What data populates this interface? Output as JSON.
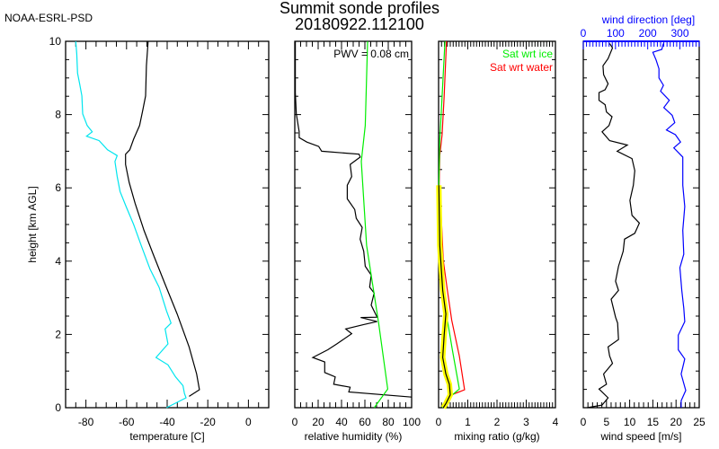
{
  "header": {
    "org": "NOAA-ESRL-PSD",
    "title": "Summit sonde profiles",
    "subtitle": "20180922.112100",
    "ylabel": "height [km AGL]"
  },
  "colors": {
    "temperature": "#000000",
    "dewpoint": "#00e5ee",
    "rh": "#000000",
    "rh_ice": "#00ee00",
    "mr": "#000000",
    "mr_band": "#ffff00",
    "sat_ice": "#00ee00",
    "sat_water": "#ff0000",
    "speed": "#000000",
    "direction": "#0000ff"
  },
  "chart_data": [
    {
      "type": "line",
      "name": "temperature",
      "xlabel": "temperature [C]",
      "ylabel": "height [km AGL]",
      "xlim": [
        -90,
        10
      ],
      "ylim": [
        0,
        10
      ],
      "xticks": [
        -80,
        -60,
        -40,
        -20,
        0
      ],
      "xtick_labels": [
        "-80",
        "-60",
        "-40",
        "-20",
        "0"
      ],
      "yticks": [
        0,
        2,
        4,
        6,
        8,
        10
      ],
      "ytick_labels": [
        "0",
        "2",
        "4",
        "6",
        "8",
        "10"
      ],
      "series": [
        {
          "name": "temperature",
          "color": "#000000",
          "points": [
            [
              -49.4,
              10
            ],
            [
              -50.2,
              9.33
            ],
            [
              -50.6,
              8.51
            ],
            [
              -52.1,
              8.1
            ],
            [
              -53.6,
              7.7
            ],
            [
              -56.5,
              7.33
            ],
            [
              -58.4,
              7.04
            ],
            [
              -60.5,
              6.92
            ],
            [
              -60.5,
              6.64
            ],
            [
              -58.7,
              6.15
            ],
            [
              -55.8,
              5.58
            ],
            [
              -51.4,
              4.84
            ],
            [
              -46.9,
              4.19
            ],
            [
              -41.0,
              3.37
            ],
            [
              -35.1,
              2.56
            ],
            [
              -29.2,
              1.66
            ],
            [
              -25.5,
              0.92
            ],
            [
              -24.1,
              0.49
            ],
            [
              -29.2,
              0.31
            ]
          ]
        },
        {
          "name": "dewpoint",
          "color": "#00e5ee",
          "points": [
            [
              -85,
              10
            ],
            [
              -84.5,
              9.66
            ],
            [
              -84.1,
              9.13
            ],
            [
              -83.1,
              8.84
            ],
            [
              -82,
              8.51
            ],
            [
              -81.6,
              8.02
            ],
            [
              -79.4,
              7.7
            ],
            [
              -76.9,
              7.53
            ],
            [
              -79.7,
              7.41
            ],
            [
              -73.5,
              7.29
            ],
            [
              -69.4,
              7.04
            ],
            [
              -64.6,
              6.88
            ],
            [
              -65.7,
              6.72
            ],
            [
              -64.6,
              6.31
            ],
            [
              -63.2,
              5.9
            ],
            [
              -60.2,
              5.49
            ],
            [
              -56.5,
              5.0
            ],
            [
              -52.8,
              4.43
            ],
            [
              -48.4,
              3.78
            ],
            [
              -44.0,
              3.29
            ],
            [
              -40.3,
              2.64
            ],
            [
              -38.1,
              2.31
            ],
            [
              -41.0,
              2.15
            ],
            [
              -39.6,
              1.74
            ],
            [
              -45.5,
              1.37
            ],
            [
              -39.6,
              1.17
            ],
            [
              -35.9,
              0.84
            ],
            [
              -32.2,
              0.6
            ],
            [
              -31.5,
              0.39
            ],
            [
              -30.7,
              0.27
            ],
            [
              -40.3,
              0
            ]
          ]
        }
      ]
    },
    {
      "type": "line",
      "name": "relative-humidity",
      "xlabel": "relative humidity (%)",
      "xlim": [
        0,
        100
      ],
      "ylim": [
        0,
        10
      ],
      "xticks": [
        0,
        20,
        40,
        60,
        80,
        100
      ],
      "xtick_labels": [
        "0",
        "20",
        "40",
        "60",
        "80",
        "100"
      ],
      "annotation": "PWV = 0.08 cm",
      "series": [
        {
          "name": "rh",
          "color": "#000000",
          "points": [
            [
              0.5,
              10
            ],
            [
              0.5,
              8.6
            ],
            [
              1.3,
              8.02
            ],
            [
              3.8,
              7.53
            ],
            [
              3.8,
              7.37
            ],
            [
              10.3,
              7.25
            ],
            [
              20.5,
              7.13
            ],
            [
              23,
              7.0
            ],
            [
              55,
              6.92
            ],
            [
              56,
              6.84
            ],
            [
              47.4,
              6.64
            ],
            [
              48.7,
              6.31
            ],
            [
              44.9,
              6.07
            ],
            [
              44.9,
              5.7
            ],
            [
              51.3,
              5.41
            ],
            [
              52.6,
              5.17
            ],
            [
              57.7,
              4.92
            ],
            [
              55.9,
              4.6
            ],
            [
              59,
              4.27
            ],
            [
              60.3,
              3.86
            ],
            [
              65.4,
              3.62
            ],
            [
              64.1,
              3.29
            ],
            [
              67.9,
              3.13
            ],
            [
              65.4,
              2.8
            ],
            [
              70.5,
              2.47
            ],
            [
              56.4,
              2.46
            ],
            [
              70.5,
              2.35
            ],
            [
              59,
              2.27
            ],
            [
              43.6,
              2.15
            ],
            [
              48.7,
              2.02
            ],
            [
              35.9,
              1.74
            ],
            [
              28.2,
              1.58
            ],
            [
              15.4,
              1.37
            ],
            [
              25.6,
              1.25
            ],
            [
              25.6,
              0.96
            ],
            [
              34.6,
              0.84
            ],
            [
              33.3,
              0.64
            ],
            [
              47.4,
              0.56
            ],
            [
              46.2,
              0.43
            ],
            [
              100,
              0.29
            ]
          ]
        },
        {
          "name": "rh_ice_saturation",
          "color": "#00ee00",
          "points": [
            [
              62.3,
              10
            ],
            [
              60.3,
              7.7
            ],
            [
              56.9,
              6.72
            ],
            [
              61.5,
              4.43
            ],
            [
              71.8,
              2.31
            ],
            [
              79.5,
              0.51
            ],
            [
              68,
              0
            ]
          ]
        }
      ]
    },
    {
      "type": "line",
      "name": "mixing-ratio",
      "xlabel": "mixing ratio (g/kg)",
      "xlim": [
        0,
        4
      ],
      "ylim": [
        0,
        10
      ],
      "xticks": [
        0,
        1,
        2,
        3,
        4
      ],
      "xtick_labels": [
        "0",
        "1",
        "2",
        "3",
        "4"
      ],
      "legend": [
        "Sat wrt ice",
        "Sat wrt water"
      ],
      "legend_position": "top-right",
      "series": [
        {
          "name": "sat_water",
          "color": "#ff0000",
          "points": [
            [
              0.27,
              10
            ],
            [
              0.19,
              8.5
            ],
            [
              0.12,
              7.45
            ],
            [
              0.04,
              6.88
            ],
            [
              0.02,
              6.07
            ],
            [
              0.09,
              5.25
            ],
            [
              0.16,
              4.02
            ],
            [
              0.3,
              3.2
            ],
            [
              0.45,
              2.39
            ],
            [
              0.71,
              1.41
            ],
            [
              0.89,
              0.49
            ],
            [
              0.45,
              0.35
            ],
            [
              0.14,
              0
            ]
          ]
        },
        {
          "name": "sat_ice",
          "color": "#00ee00",
          "points": [
            [
              0.22,
              10
            ],
            [
              0.12,
              8.5
            ],
            [
              0.04,
              7.29
            ],
            [
              0.01,
              6.07
            ],
            [
              0.04,
              4.43
            ],
            [
              0.14,
              3.2
            ],
            [
              0.3,
              2.39
            ],
            [
              0.47,
              1.58
            ],
            [
              0.71,
              0.51
            ],
            [
              0.35,
              0.27
            ],
            [
              0.12,
              0
            ]
          ]
        },
        {
          "name": "mixing_ratio",
          "color": "#000000",
          "band_color": "#ffff00",
          "points": [
            [
              0.01,
              6.07
            ],
            [
              0.04,
              4.43
            ],
            [
              0.14,
              3.2
            ],
            [
              0.25,
              2.56
            ],
            [
              0.19,
              1.98
            ],
            [
              0.14,
              1.37
            ],
            [
              0.25,
              0.92
            ],
            [
              0.37,
              0.64
            ],
            [
              0.4,
              0.35
            ],
            [
              0.25,
              0.11
            ],
            [
              0.16,
              0
            ]
          ]
        }
      ]
    },
    {
      "type": "line",
      "name": "wind",
      "xlabel": "wind speed [m/s]",
      "xlim": [
        0,
        25
      ],
      "ylim": [
        0,
        10
      ],
      "xticks": [
        0,
        5,
        10,
        15,
        20,
        25
      ],
      "xtick_labels": [
        "0",
        "5",
        "10",
        "15",
        "20",
        "25"
      ],
      "x2label": "wind direction [deg]",
      "x2lim": [
        0,
        360
      ],
      "x2ticks": [
        0,
        100,
        200,
        300
      ],
      "x2tick_labels": [
        "0",
        "100",
        "200",
        "300"
      ],
      "series": [
        {
          "name": "speed",
          "axis": "x",
          "color": "#000000",
          "points": [
            [
              5.67,
              9.94
            ],
            [
              6.3,
              9.82
            ],
            [
              5.35,
              9.53
            ],
            [
              4.25,
              9.33
            ],
            [
              4.38,
              9.09
            ],
            [
              5.35,
              8.84
            ],
            [
              4.7,
              8.68
            ],
            [
              3.4,
              8.6
            ],
            [
              3.4,
              8.39
            ],
            [
              4.7,
              8.27
            ],
            [
              5.0,
              8.07
            ],
            [
              6.2,
              7.94
            ],
            [
              5.54,
              7.7
            ],
            [
              4.06,
              7.53
            ],
            [
              5.67,
              7.29
            ],
            [
              9.5,
              7.17
            ],
            [
              7.3,
              7.0
            ],
            [
              10.5,
              6.8
            ],
            [
              11.1,
              6.47
            ],
            [
              10.8,
              6.07
            ],
            [
              10.05,
              5.66
            ],
            [
              10.5,
              5.25
            ],
            [
              12.1,
              5.04
            ],
            [
              11.1,
              4.76
            ],
            [
              8.9,
              4.6
            ],
            [
              8.6,
              4.27
            ],
            [
              7.6,
              3.86
            ],
            [
              6.96,
              3.45
            ],
            [
              7.6,
              3.2
            ],
            [
              6.0,
              2.96
            ],
            [
              6.96,
              2.47
            ],
            [
              7.4,
              2.31
            ],
            [
              7.6,
              1.86
            ],
            [
              5.35,
              1.66
            ],
            [
              5.67,
              1.41
            ],
            [
              6.3,
              1.21
            ],
            [
              4.38,
              0.92
            ],
            [
              5.0,
              0.64
            ],
            [
              3.4,
              0.51
            ],
            [
              5.35,
              0.27
            ],
            [
              4.06,
              0.07
            ],
            [
              0.84,
              0
            ]
          ]
        },
        {
          "name": "direction",
          "axis": "x2",
          "color": "#0000ff",
          "points": [
            [
              248.7,
              9.94
            ],
            [
              244,
              9.78
            ],
            [
              216,
              9.7
            ],
            [
              226,
              9.49
            ],
            [
              235,
              9.25
            ],
            [
              235,
              9.0
            ],
            [
              249,
              8.8
            ],
            [
              240,
              8.64
            ],
            [
              267,
              8.39
            ],
            [
              250,
              8.19
            ],
            [
              276,
              7.98
            ],
            [
              284,
              7.78
            ],
            [
              258,
              7.58
            ],
            [
              286,
              7.45
            ],
            [
              302,
              7.25
            ],
            [
              281,
              7.09
            ],
            [
              309,
              6.84
            ],
            [
              309,
              6.07
            ],
            [
              315,
              5.49
            ],
            [
              309,
              4.84
            ],
            [
              312,
              4.19
            ],
            [
              300,
              3.82
            ],
            [
              306,
              3.2
            ],
            [
              312,
              2.72
            ],
            [
              315,
              2.35
            ],
            [
              295,
              1.98
            ],
            [
              295,
              1.58
            ],
            [
              315,
              1.33
            ],
            [
              304,
              0.92
            ],
            [
              318,
              0.47
            ],
            [
              304,
              0.19
            ],
            [
              304,
              0
            ]
          ]
        }
      ]
    }
  ]
}
